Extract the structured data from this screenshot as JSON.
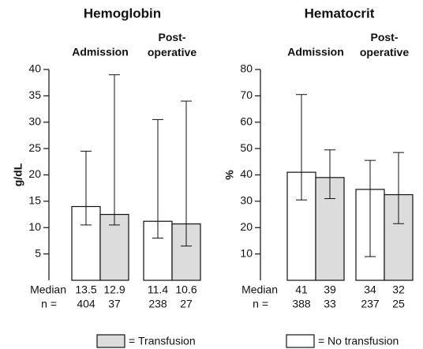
{
  "legend_separator": "=",
  "chart_data": [
    {
      "type": "bar",
      "title": "Hemoglobin",
      "ylabel": "g/dL",
      "categories": [
        "Admission",
        "Post-operative"
      ],
      "ylim": [
        0,
        40
      ],
      "yticks": [
        5,
        10,
        15,
        20,
        25,
        30,
        35,
        40
      ],
      "row_labels": [
        "Median",
        "n ="
      ],
      "series": [
        {
          "name": "No transfusion",
          "color": "#ffffff",
          "values": [
            14.0,
            11.2
          ],
          "low": [
            10.5,
            8
          ],
          "high": [
            24.5,
            30.5
          ],
          "median": [
            13.5,
            11.4
          ],
          "n": [
            404,
            238
          ]
        },
        {
          "name": "Transfusion",
          "color": "#dcdcdc",
          "values": [
            12.5,
            10.7
          ],
          "low": [
            10.5,
            6.5
          ],
          "high": [
            39,
            34
          ],
          "median": [
            12.9,
            10.6
          ],
          "n": [
            37,
            27
          ]
        }
      ]
    },
    {
      "type": "bar",
      "title": "Hematocrit",
      "ylabel": "%",
      "categories": [
        "Admission",
        "Post-operative"
      ],
      "ylim": [
        0,
        80
      ],
      "yticks": [
        10,
        20,
        30,
        40,
        50,
        60,
        70,
        80
      ],
      "row_labels": [
        "Median",
        "n ="
      ],
      "series": [
        {
          "name": "No transfusion",
          "color": "#ffffff",
          "values": [
            41,
            34.5
          ],
          "low": [
            30.5,
            9
          ],
          "high": [
            70.5,
            45.5
          ],
          "median": [
            41,
            34
          ],
          "n": [
            388,
            237
          ]
        },
        {
          "name": "Transfusion",
          "color": "#dcdcdc",
          "values": [
            39,
            32.5
          ],
          "low": [
            31,
            21.5
          ],
          "high": [
            49.5,
            48.5
          ],
          "median": [
            39,
            32
          ],
          "n": [
            33,
            25
          ]
        }
      ]
    }
  ]
}
